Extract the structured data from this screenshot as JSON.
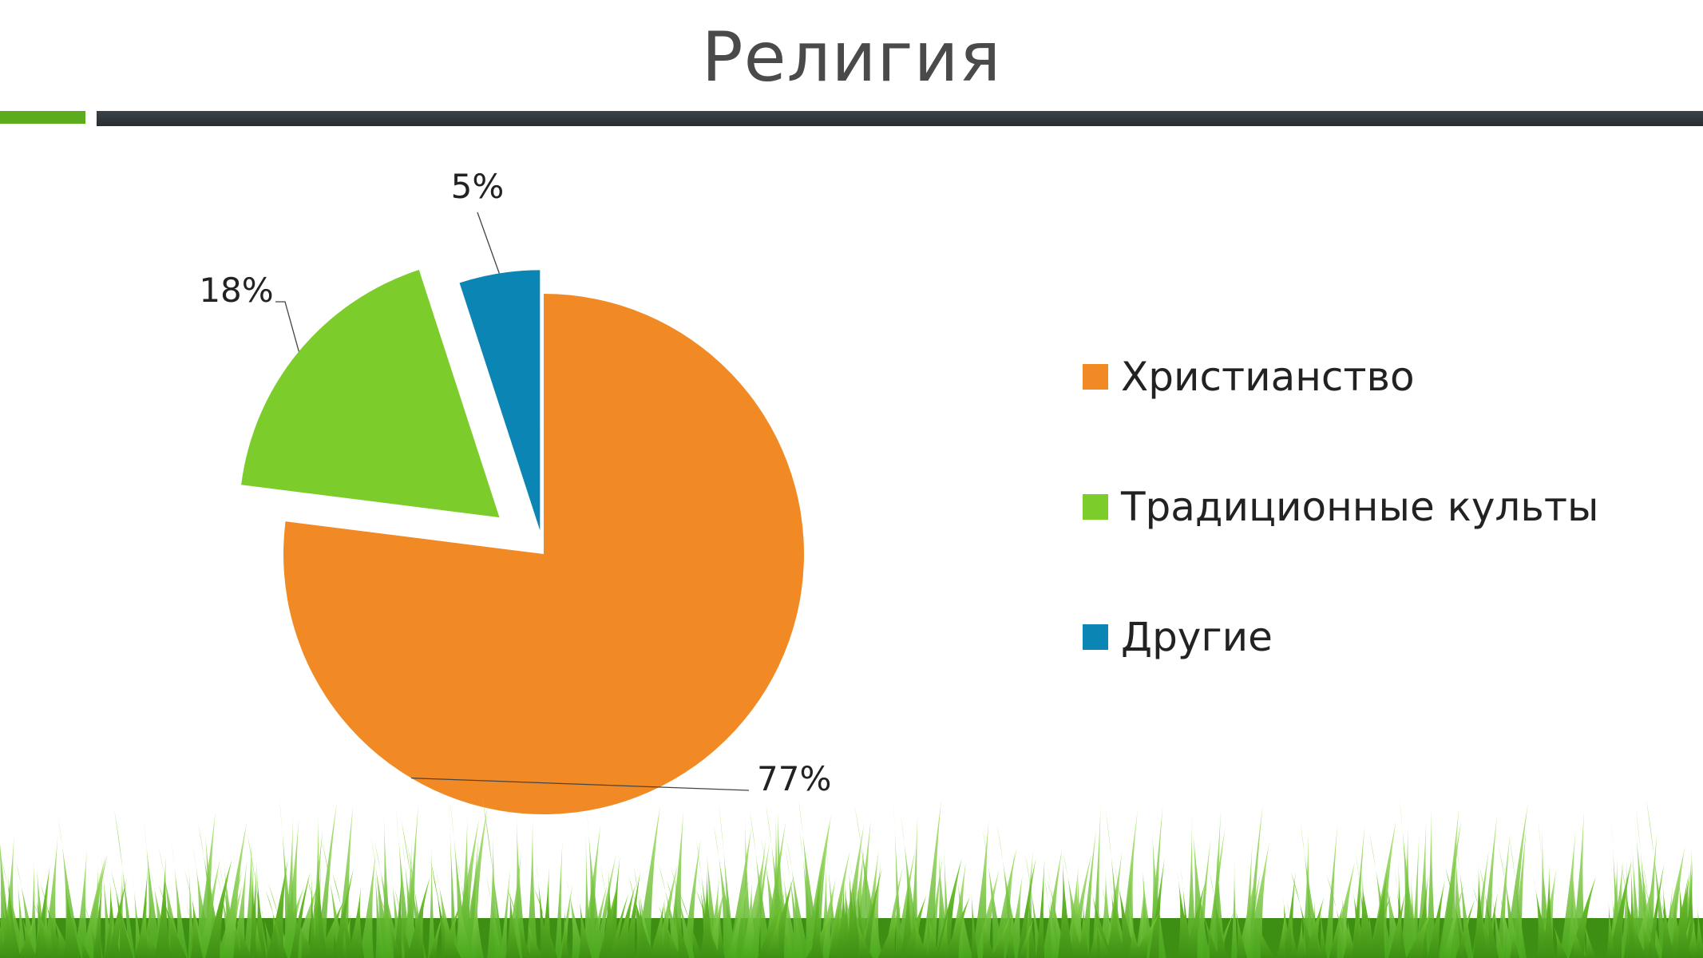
{
  "slide": {
    "title": "Религия"
  },
  "chart_data": {
    "type": "pie",
    "title": "",
    "slices": [
      {
        "label": "Христианство",
        "value": 77,
        "data_label": "77%",
        "color": "#f18a24"
      },
      {
        "label": "Традиционные культы",
        "value": 18,
        "data_label": "18%",
        "color": "#7ccd2c"
      },
      {
        "label": "Другие",
        "value": 5,
        "data_label": "5%",
        "color": "#0b85b4"
      }
    ],
    "legend_position": "right"
  },
  "colors": {
    "accent_green": "#5aac1c",
    "bar_dark": "#2f363c",
    "grass_dark": "#3c8f12",
    "grass_light": "#7fd23a"
  }
}
